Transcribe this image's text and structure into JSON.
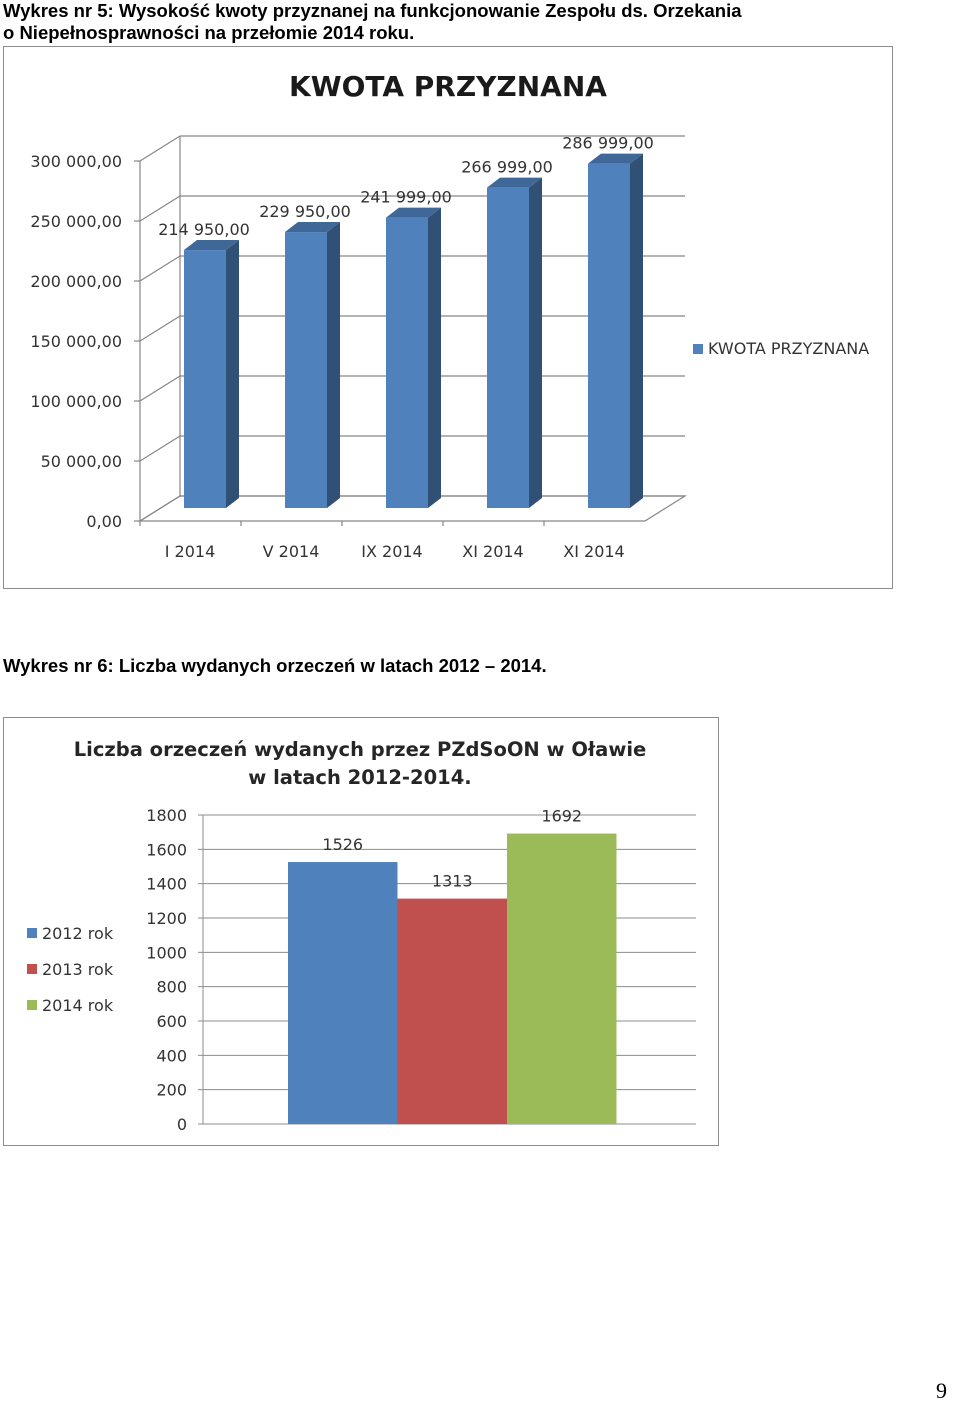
{
  "captions": {
    "chart5_line1": "Wykres nr 5:  Wysokość kwoty przyznanej na funkcjonowanie Zespołu ds. Orzekania",
    "chart5_line2": "o Niepełnosprawności na przełomie 2014 roku.",
    "chart6": "Wykres nr 6: Liczba wydanych orzeczeń w latach 2012 – 2014."
  },
  "page_number": "9",
  "chart_data": [
    {
      "type": "bar",
      "style": "3d-column",
      "title": "KWOTA PRZYZNANA",
      "categories": [
        "I 2014",
        "V 2014",
        "IX 2014",
        "XI 2014",
        "XI 2014"
      ],
      "series": [
        {
          "name": "KWOTA PRZYZNANA",
          "color": "#4f81bd",
          "values": [
            214950,
            229950,
            241999,
            266999,
            286999
          ],
          "labels": [
            "214 950,00",
            "229 950,00",
            "241 999,00",
            "266 999,00",
            "286 999,00"
          ]
        }
      ],
      "ylim": [
        0,
        300000
      ],
      "yticks": [
        0,
        50000,
        100000,
        150000,
        200000,
        250000,
        300000
      ],
      "ytick_labels": [
        "0,00",
        "50 000,00",
        "100 000,00",
        "150 000,00",
        "200 000,00",
        "250 000,00",
        "300 000,00"
      ],
      "grid": true,
      "legend": "right"
    },
    {
      "type": "bar",
      "title_lines": [
        "Liczba orzeczeń wydanych przez PZdSoON w Oławie",
        "w latach 2012-2014."
      ],
      "series": [
        {
          "name": "2012 rok",
          "value": 1526,
          "color": "#4f81bd"
        },
        {
          "name": "2013 rok",
          "value": 1313,
          "color": "#c0504d"
        },
        {
          "name": "2014 rok",
          "value": 1692,
          "color": "#9bbb59"
        }
      ],
      "ylim": [
        0,
        1800
      ],
      "yticks": [
        0,
        200,
        400,
        600,
        800,
        1000,
        1200,
        1400,
        1600,
        1800
      ],
      "ytick_labels": [
        "0",
        "200",
        "400",
        "600",
        "800",
        "1000",
        "1200",
        "1400",
        "1600",
        "1800"
      ],
      "grid": true,
      "legend": "left"
    }
  ]
}
